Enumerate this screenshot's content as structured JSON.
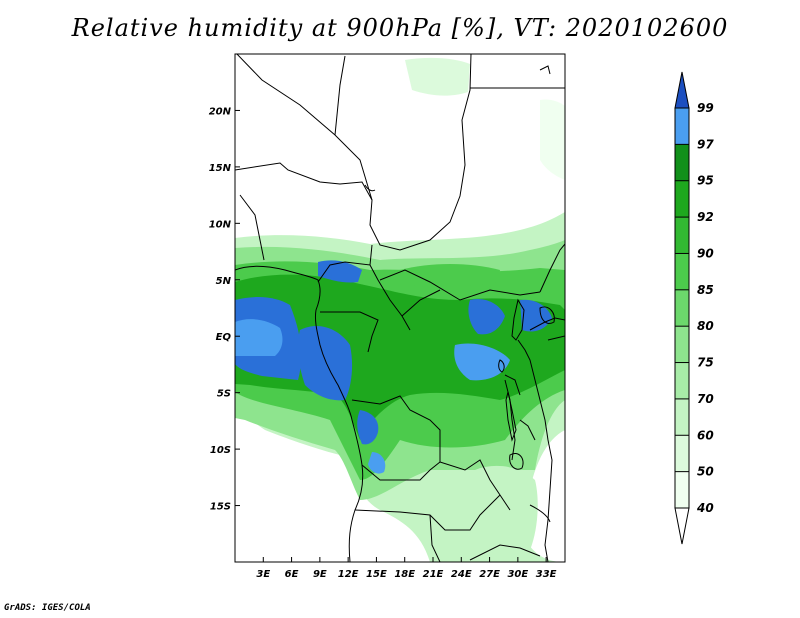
{
  "title": "Relative humidity at 900hPa [%], VT: 2020102600",
  "credit": "GrADS: IGES/COLA",
  "map": {
    "lon_range": [
      0,
      35
    ],
    "lat_range": [
      -20,
      25
    ],
    "lon_ticks": [
      {
        "value": 3,
        "label": "3E"
      },
      {
        "value": 6,
        "label": "6E"
      },
      {
        "value": 9,
        "label": "9E"
      },
      {
        "value": 12,
        "label": "12E"
      },
      {
        "value": 15,
        "label": "15E"
      },
      {
        "value": 18,
        "label": "18E"
      },
      {
        "value": 21,
        "label": "21E"
      },
      {
        "value": 24,
        "label": "24E"
      },
      {
        "value": 27,
        "label": "27E"
      },
      {
        "value": 30,
        "label": "30E"
      },
      {
        "value": 33,
        "label": "33E"
      }
    ],
    "lat_ticks": [
      {
        "value": 20,
        "label": "20N"
      },
      {
        "value": 15,
        "label": "15N"
      },
      {
        "value": 10,
        "label": "10N"
      },
      {
        "value": 5,
        "label": "5N"
      },
      {
        "value": 0,
        "label": "EQ"
      },
      {
        "value": -5,
        "label": "5S"
      },
      {
        "value": -10,
        "label": "10S"
      },
      {
        "value": -15,
        "label": "15S"
      }
    ]
  },
  "colorbar": {
    "levels": [
      {
        "label": "40",
        "color": "#f0fff0"
      },
      {
        "label": "50",
        "color": "#dcfadc"
      },
      {
        "label": "60",
        "color": "#c4f4c4"
      },
      {
        "label": "70",
        "color": "#a8eca8"
      },
      {
        "label": "75",
        "color": "#8ee48e"
      },
      {
        "label": "80",
        "color": "#6cd86c"
      },
      {
        "label": "85",
        "color": "#4ccb4c"
      },
      {
        "label": "90",
        "color": "#32b932"
      },
      {
        "label": "92",
        "color": "#1ea81e"
      },
      {
        "label": "95",
        "color": "#11901a"
      },
      {
        "label": "97",
        "color": "#4a9ef0"
      },
      {
        "label": "99",
        "color": "#2a70d8"
      }
    ],
    "below_color": "#ffffff",
    "above_color": "#1c4fc0"
  }
}
